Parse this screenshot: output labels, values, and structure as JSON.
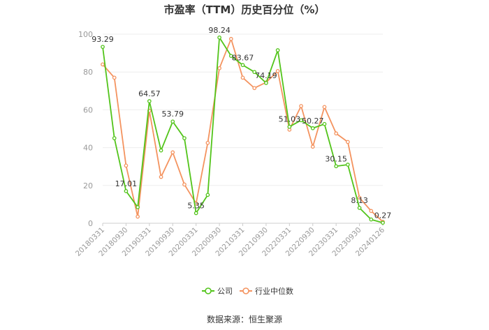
{
  "chart_data": {
    "type": "line",
    "title": "市盈率（TTM）历史百分位（%）",
    "source": "数据来源：恒生聚源",
    "ylim": [
      0,
      100
    ],
    "yticks": [
      0,
      20,
      40,
      60,
      80,
      100
    ],
    "grid": true,
    "legend_position": "bottom-center",
    "x_tick_labels": [
      "20180331",
      "20180930",
      "20190331",
      "20190930",
      "20200331",
      "20200930",
      "20210331",
      "20210930",
      "20220331",
      "20220930",
      "20230331",
      "20230930",
      "20240126"
    ],
    "x_tick_positions": [
      0,
      2,
      4,
      6,
      8,
      10,
      12,
      14,
      16,
      18,
      20,
      22,
      24
    ],
    "series": [
      {
        "name": "公司",
        "color": "#52c41a",
        "values": [
          93.29,
          45,
          17.01,
          8.5,
          64.57,
          38.5,
          53.79,
          45,
          5.35,
          15,
          98.24,
          88.5,
          83.67,
          80,
          74.19,
          91.5,
          51.03,
          54.5,
          50.27,
          52.5,
          30.15,
          31,
          8.13,
          2,
          0.27
        ]
      },
      {
        "name": "行业中位数",
        "color": "#f4935f",
        "values": [
          84,
          77,
          30.5,
          3.5,
          59.5,
          24.5,
          37.5,
          20.5,
          10.5,
          42.5,
          82,
          97.5,
          77,
          71.5,
          74.5,
          80.5,
          49.5,
          62,
          40.5,
          61.5,
          47.5,
          43,
          13.5,
          6.5,
          0.8
        ]
      }
    ],
    "data_labels": [
      {
        "index": 0,
        "text": "93.29"
      },
      {
        "index": 2,
        "text": "17.01"
      },
      {
        "index": 4,
        "text": "64.57"
      },
      {
        "index": 6,
        "text": "53.79"
      },
      {
        "index": 8,
        "text": "5.35"
      },
      {
        "index": 10,
        "text": "98.24"
      },
      {
        "index": 12,
        "text": "83.67"
      },
      {
        "index": 14,
        "text": "74.19"
      },
      {
        "index": 16,
        "text": "51.03"
      },
      {
        "index": 18,
        "text": "50.27"
      },
      {
        "index": 20,
        "text": "30.15"
      },
      {
        "index": 22,
        "text": "8.13"
      },
      {
        "index": 24,
        "text": "0.27"
      }
    ]
  }
}
